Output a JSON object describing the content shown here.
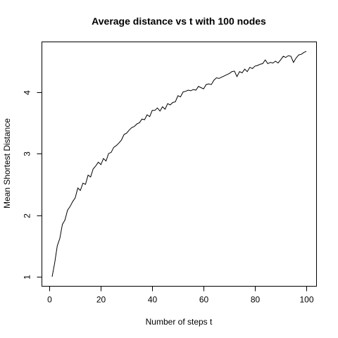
{
  "chart_data": {
    "type": "line",
    "title": "Average distance vs t with 100 nodes",
    "xlabel": "Number of steps t",
    "ylabel": "Mean Shortest Distance",
    "xlim": [
      1,
      100
    ],
    "ylim": [
      1,
      4.67
    ],
    "grid": false,
    "legend": "none",
    "x_ticks": [
      0,
      20,
      40,
      60,
      80,
      100
    ],
    "y_ticks": [
      1,
      2,
      3,
      4
    ],
    "line_color": "#000000",
    "series": [
      {
        "x": [
          1,
          2,
          3,
          4,
          5,
          6,
          7,
          8,
          9,
          10,
          11,
          12,
          13,
          14,
          15,
          16,
          17,
          18,
          19,
          20,
          21,
          22,
          23,
          24,
          25,
          26,
          27,
          28,
          29,
          30,
          31,
          32,
          33,
          34,
          35,
          36,
          37,
          38,
          39,
          40,
          41,
          42,
          43,
          44,
          45,
          46,
          47,
          48,
          49,
          50,
          51,
          52,
          53,
          54,
          55,
          56,
          57,
          58,
          59,
          60,
          61,
          62,
          63,
          64,
          65,
          66,
          67,
          68,
          69,
          70,
          71,
          72,
          73,
          74,
          75,
          76,
          77,
          78,
          79,
          80,
          81,
          82,
          83,
          84,
          85,
          86,
          87,
          88,
          89,
          90,
          91,
          92,
          93,
          94,
          95,
          96,
          97,
          98,
          99,
          100
        ],
        "y": [
          1.0,
          1.22,
          1.5,
          1.62,
          1.85,
          1.92,
          2.08,
          2.14,
          2.22,
          2.28,
          2.44,
          2.4,
          2.52,
          2.5,
          2.65,
          2.62,
          2.75,
          2.8,
          2.86,
          2.82,
          2.92,
          2.88,
          3.0,
          3.02,
          3.1,
          3.13,
          3.17,
          3.22,
          3.31,
          3.33,
          3.38,
          3.42,
          3.44,
          3.48,
          3.5,
          3.56,
          3.55,
          3.63,
          3.6,
          3.7,
          3.7,
          3.74,
          3.69,
          3.76,
          3.72,
          3.81,
          3.79,
          3.83,
          3.84,
          3.94,
          3.92,
          4.0,
          4.01,
          4.03,
          4.02,
          4.04,
          4.03,
          4.09,
          4.07,
          4.05,
          4.12,
          4.13,
          4.12,
          4.19,
          4.23,
          4.22,
          4.24,
          4.26,
          4.28,
          4.3,
          4.33,
          4.34,
          4.25,
          4.33,
          4.31,
          4.37,
          4.33,
          4.4,
          4.38,
          4.42,
          4.43,
          4.45,
          4.46,
          4.52,
          4.46,
          4.48,
          4.47,
          4.5,
          4.47,
          4.52,
          4.58,
          4.56,
          4.59,
          4.58,
          4.48,
          4.55,
          4.6,
          4.61,
          4.64,
          4.66
        ]
      }
    ]
  }
}
